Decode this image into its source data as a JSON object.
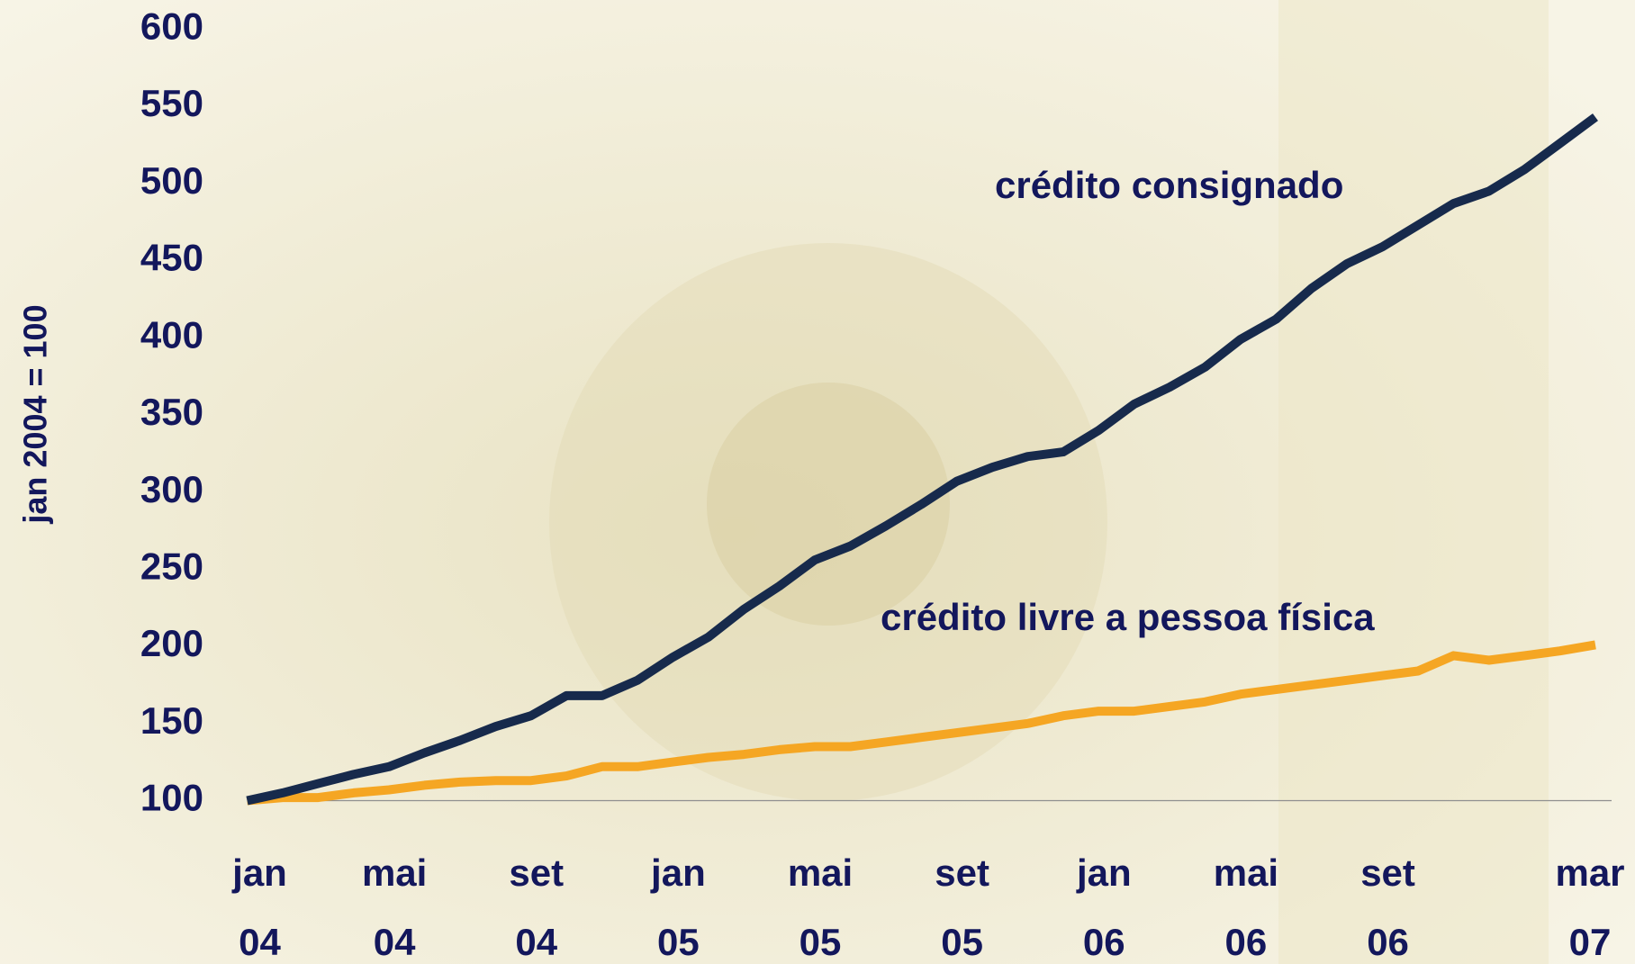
{
  "chart_data": {
    "type": "line",
    "y_label": "jan 2004 = 100",
    "categories": [
      [
        "jan",
        "04"
      ],
      null,
      null,
      null,
      [
        "mai",
        "04"
      ],
      null,
      null,
      null,
      [
        "set",
        "04"
      ],
      null,
      null,
      null,
      [
        "jan",
        "05"
      ],
      null,
      null,
      null,
      [
        "mai",
        "05"
      ],
      null,
      null,
      null,
      [
        "set",
        "05"
      ],
      null,
      null,
      null,
      [
        "jan",
        "06"
      ],
      null,
      null,
      null,
      [
        "mai",
        "06"
      ],
      null,
      null,
      null,
      [
        "set",
        "06"
      ],
      null,
      null,
      null,
      null,
      null,
      [
        "mar",
        "07"
      ]
    ],
    "series": [
      {
        "name": "crédito consignado",
        "color": "#172a4c",
        "values": [
          100,
          105,
          111,
          117,
          122,
          131,
          139,
          148,
          155,
          168,
          168,
          178,
          193,
          206,
          224,
          239,
          256,
          265,
          278,
          292,
          307,
          316,
          323,
          326,
          340,
          357,
          368,
          381,
          399,
          412,
          432,
          448,
          459,
          473,
          487,
          495,
          509,
          526,
          543
        ]
      },
      {
        "name": "crédito livre a pessoa física",
        "color": "#f5a623",
        "values": [
          100,
          102,
          102,
          105,
          107,
          110,
          112,
          113,
          113,
          116,
          122,
          122,
          125,
          128,
          130,
          133,
          135,
          135,
          138,
          141,
          144,
          147,
          150,
          155,
          158,
          158,
          161,
          164,
          169,
          172,
          175,
          178,
          181,
          184,
          194,
          191,
          194,
          197,
          201
        ]
      }
    ],
    "ylim": [
      100,
      600
    ],
    "yticks": [
      100,
      150,
      200,
      250,
      300,
      350,
      400,
      450,
      500,
      550,
      600
    ],
    "grid": false
  }
}
